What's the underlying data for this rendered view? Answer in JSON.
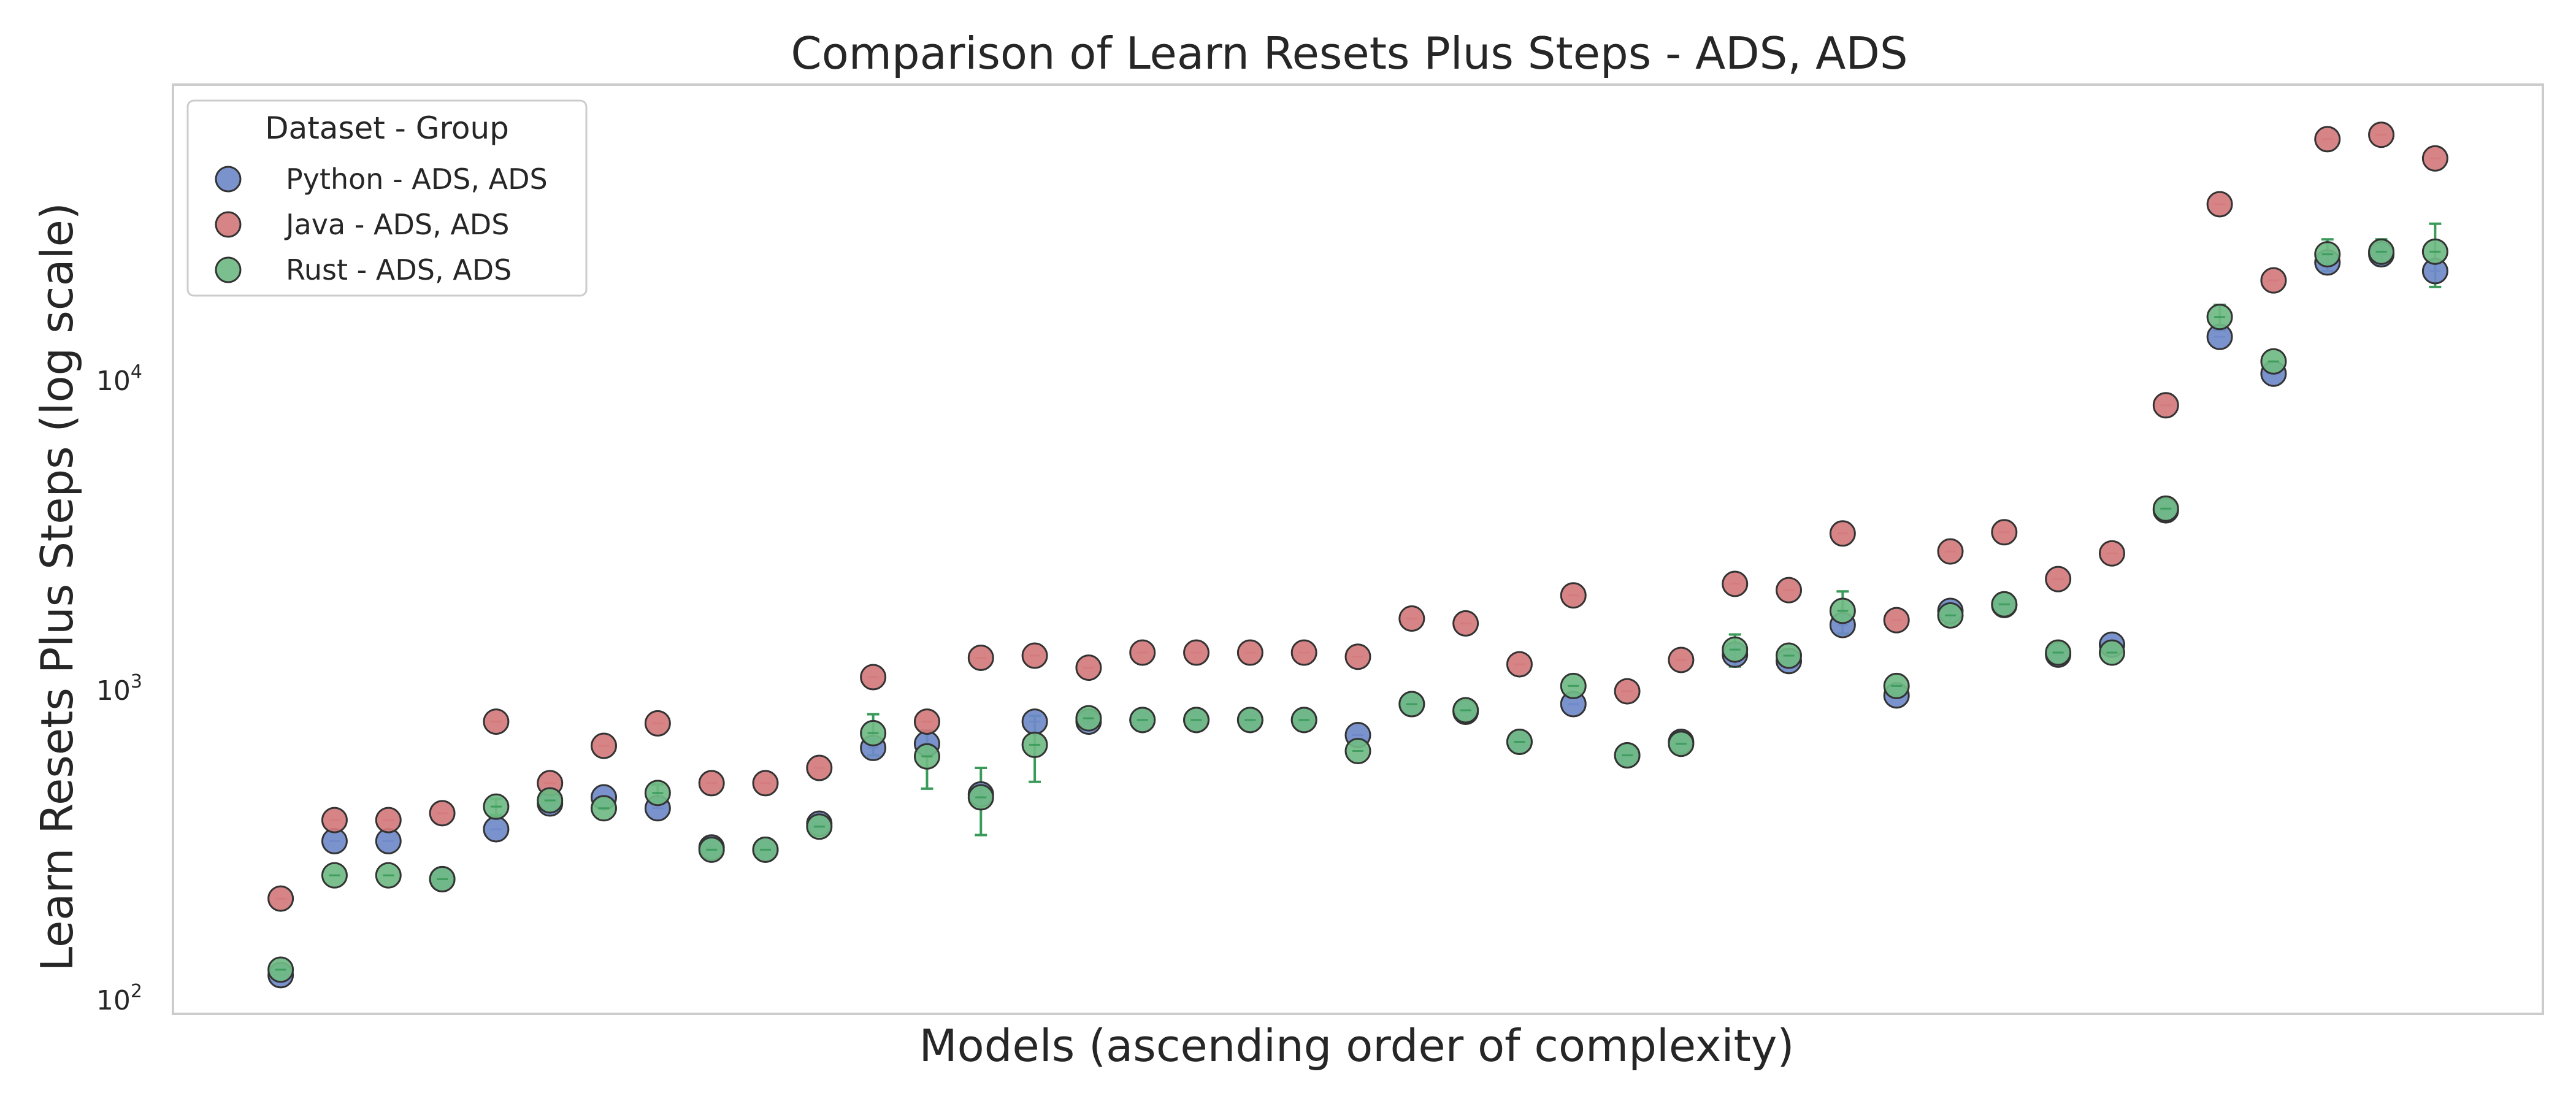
{
  "chart_data": {
    "type": "scatter",
    "title": "Comparison of Learn Resets Plus Steps  - ADS, ADS",
    "xlabel": "Models (ascending order of complexity)",
    "ylabel": "Learn Resets Plus Steps (log scale)",
    "yscale": "log",
    "ylim": [
      90,
      90000
    ],
    "xlim": [
      -2,
      42
    ],
    "y_ticks": [
      {
        "value": 100,
        "base": "10",
        "exp": "2"
      },
      {
        "value": 1000,
        "base": "10",
        "exp": "3"
      },
      {
        "value": 10000,
        "base": "10",
        "exp": "4"
      }
    ],
    "grid": false,
    "legend": {
      "title": "Dataset - Group",
      "position": "top-left"
    },
    "series": [
      {
        "name": "Python - ADS, ADS",
        "color": "#6f8ac9",
        "values": [
          120,
          325,
          325,
          245,
          355,
          430,
          450,
          415,
          310,
          305,
          370,
          650,
          670,
          460,
          790,
          790,
          800,
          800,
          800,
          800,
          715,
          900,
          850,
          680,
          900,
          615,
          680,
          1300,
          1240,
          1620,
          960,
          1800,
          1880,
          1300,
          1400,
          3800,
          13800,
          10500,
          24000,
          25500,
          22500
        ],
        "errors": [
          0,
          0,
          0,
          0,
          0,
          0,
          0,
          0,
          0,
          0,
          0,
          0,
          0,
          0,
          0,
          0,
          0,
          0,
          0,
          0,
          0,
          0,
          0,
          0,
          0,
          0,
          0,
          0,
          0,
          0,
          0,
          0,
          0,
          0,
          0,
          0,
          0,
          0,
          0,
          0,
          0
        ]
      },
      {
        "name": "Java - ADS, ADS",
        "color": "#d47a7c",
        "values": [
          212,
          380,
          380,
          400,
          790,
          500,
          660,
          780,
          500,
          500,
          560,
          1100,
          790,
          1270,
          1290,
          1180,
          1320,
          1320,
          1320,
          1320,
          1280,
          1700,
          1640,
          1210,
          2020,
          990,
          1250,
          2200,
          2100,
          3200,
          1680,
          2800,
          3230,
          2280,
          2760,
          8300,
          37000,
          21000,
          60000,
          62000,
          52000
        ],
        "errors": [
          0,
          0,
          0,
          0,
          0,
          0,
          0,
          0,
          0,
          0,
          0,
          0,
          0,
          0,
          0,
          0,
          0,
          0,
          0,
          0,
          0,
          0,
          0,
          0,
          0,
          0,
          0,
          0,
          0,
          0,
          0,
          0,
          0,
          0,
          0,
          0,
          0,
          0,
          0,
          0,
          0
        ]
      },
      {
        "name": "Rust - ADS, ADS",
        "color": "#6fba83",
        "error_color": "#3a9a5a",
        "values": [
          125,
          252,
          252,
          245,
          420,
          440,
          415,
          465,
          305,
          305,
          362,
          725,
          610,
          450,
          665,
          810,
          800,
          800,
          800,
          800,
          635,
          900,
          860,
          680,
          1030,
          615,
          670,
          1350,
          1290,
          1800,
          1030,
          1740,
          1890,
          1320,
          1320,
          3850,
          16000,
          11500,
          25500,
          26000,
          26000
        ],
        "errors": [
          0,
          0,
          0,
          0,
          25,
          0,
          0,
          30,
          0,
          0,
          0,
          110,
          130,
          110,
          160,
          30,
          0,
          0,
          0,
          0,
          0,
          0,
          0,
          0,
          0,
          0,
          0,
          160,
          60,
          280,
          0,
          110,
          0,
          0,
          0,
          0,
          1500,
          0,
          3000,
          2500,
          6000
        ]
      }
    ]
  }
}
